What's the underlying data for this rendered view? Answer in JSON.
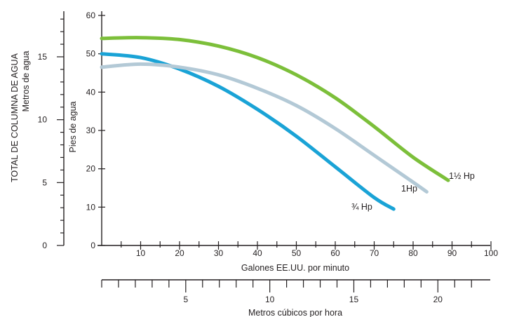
{
  "chart_data": {
    "type": "line",
    "colors": {
      "3/4 Hp": "#1aa3d6",
      "1 Hp": "#b3c9d6",
      "1 1/2 Hp": "#7cbf3a",
      "axis": "#231f20"
    },
    "axes": {
      "feet": {
        "label": "Pies de agua",
        "ticks": [
          0,
          10,
          20,
          30,
          40,
          50,
          60
        ],
        "range": [
          0,
          60
        ]
      },
      "meters_head": {
        "label_line1": "TOTAL DE COLUMNA DE AGUA",
        "label_line2": "Metros de agua",
        "ticks": [
          0,
          5,
          10,
          15
        ],
        "range": [
          0,
          18.29
        ]
      },
      "gpm": {
        "label": "Galones EE.UU. por minuto",
        "ticks": [
          10,
          20,
          30,
          40,
          50,
          60,
          70,
          80,
          90,
          100
        ],
        "range": [
          0,
          100
        ]
      },
      "m3h": {
        "label": "Metros cúbicos por hora",
        "ticks": [
          5,
          10,
          15,
          20
        ],
        "range": [
          0,
          22.7
        ]
      }
    },
    "series": [
      {
        "key": "three_quarter",
        "name": "¾ Hp",
        "x": [
          0,
          10,
          20,
          30,
          40,
          50,
          60,
          70,
          75
        ],
        "y": [
          50,
          49,
          46,
          41.5,
          35.5,
          28.5,
          20.5,
          12.5,
          9.5
        ]
      },
      {
        "key": "one",
        "name": "1Hp",
        "x": [
          0,
          10,
          20,
          30,
          40,
          50,
          60,
          70,
          80,
          83.5
        ],
        "y": [
          46.5,
          47.3,
          46.5,
          44.5,
          41,
          36.5,
          30.5,
          23.5,
          16.5,
          14
        ]
      },
      {
        "key": "one_half",
        "name": "1½ Hp",
        "x": [
          0,
          10,
          20,
          30,
          40,
          50,
          60,
          70,
          80,
          89
        ],
        "y": [
          54,
          54.2,
          53.7,
          52,
          49,
          44.5,
          38.5,
          31,
          23,
          17
        ]
      }
    ]
  }
}
